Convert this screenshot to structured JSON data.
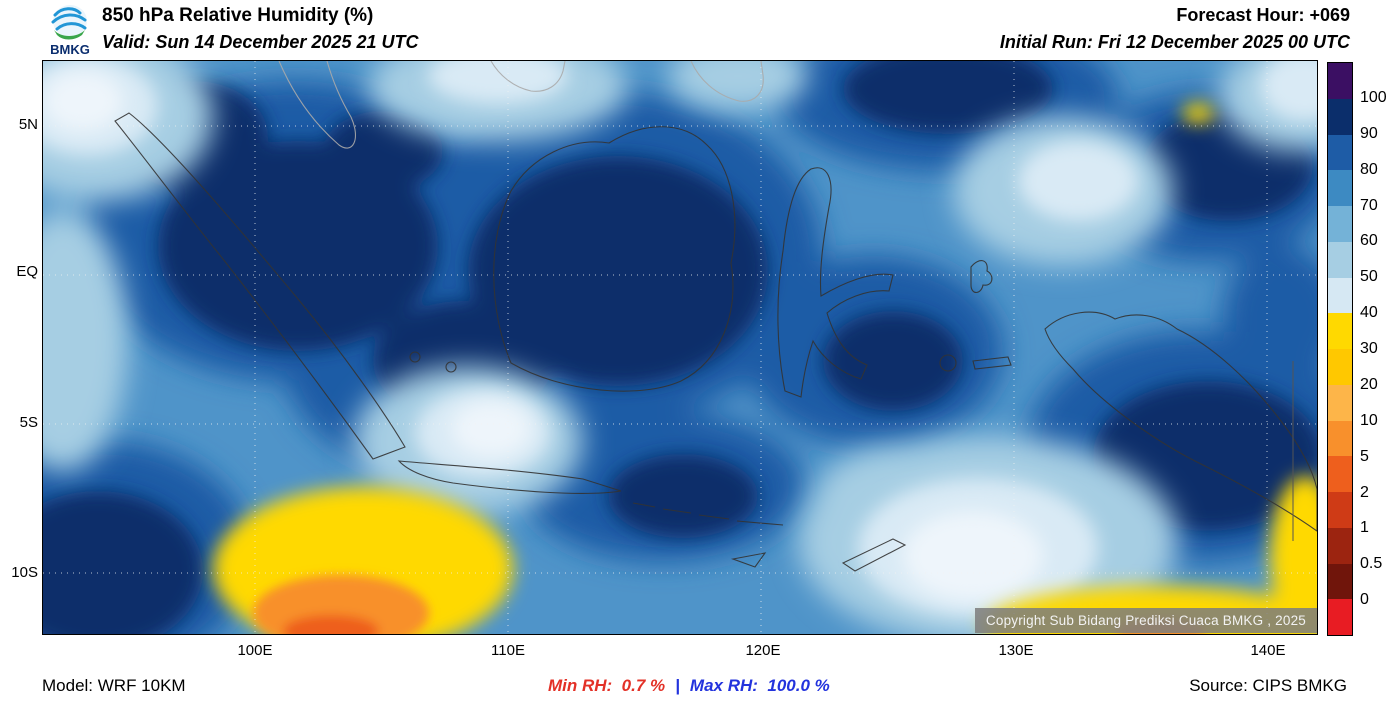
{
  "header": {
    "logo_text": "BMKG",
    "title": "850 hPa Relative Humidity (%)",
    "valid": "Valid: Sun 14 December 2025 21 UTC",
    "forecast_hour": "Forecast Hour: +069",
    "initial_run": "Initial Run: Fri 12 December 2025 00 UTC"
  },
  "map": {
    "copyright": "Copyright Sub Bidang Prediksi Cuaca BMKG , 2025",
    "lat_labels": [
      "5N",
      "EQ",
      "5S",
      "10S"
    ],
    "lon_labels": [
      "100E",
      "110E",
      "120E",
      "130E",
      "140E"
    ]
  },
  "colorbar": {
    "units": "%",
    "labels": [
      "100",
      "90",
      "80",
      "70",
      "60",
      "50",
      "40",
      "30",
      "20",
      "10",
      "5",
      "2",
      "1",
      "0.5",
      "0"
    ],
    "colors": [
      "#3b0f63",
      "#0b2e6b",
      "#1e5ca6",
      "#3d8ac2",
      "#74b2d7",
      "#a6cee3",
      "#d6e8f3",
      "#ffd900",
      "#ffc800",
      "#fdb549",
      "#f8902c",
      "#ee5f1d",
      "#cf3b16",
      "#9c2410",
      "#70150b",
      "#e81c23"
    ]
  },
  "footer": {
    "model": "Model: WRF 10KM",
    "min_label": "Min RH:",
    "min_value": "0.7 %",
    "separator": "|",
    "max_label": "Max RH:",
    "max_value": "100.0 %",
    "source": "Source: CIPS BMKG",
    "min_color": "#e33127",
    "max_color": "#2333dd"
  }
}
